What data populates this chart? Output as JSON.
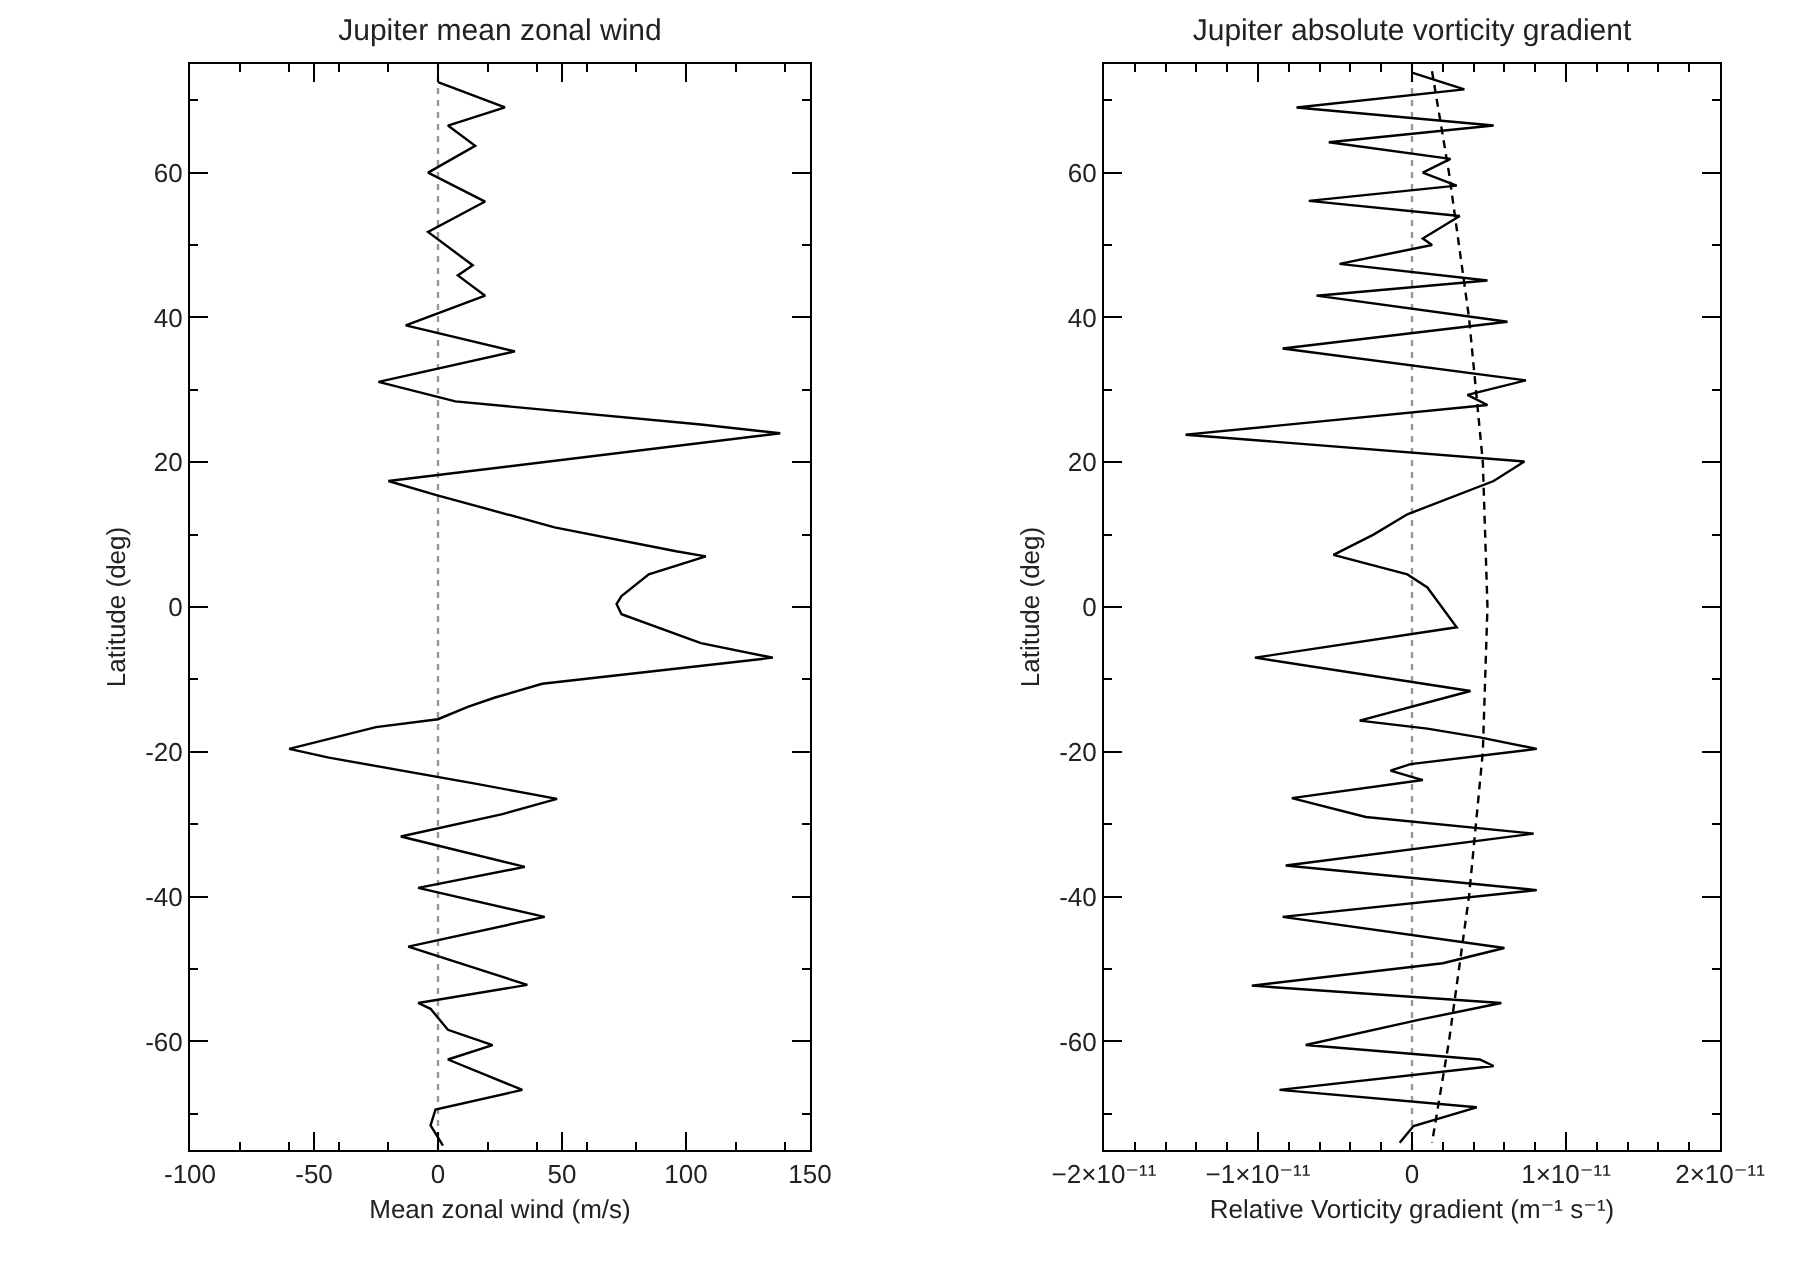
{
  "chart_data": [
    {
      "type": "line",
      "title": "Jupiter mean zonal wind",
      "xlabel": "Mean zonal wind (m/s)",
      "ylabel": "Latitude (deg)",
      "xlim": [
        -100,
        150
      ],
      "xticks": [
        -100,
        -50,
        0,
        50,
        100,
        150
      ],
      "ylim": [
        -75,
        75
      ],
      "yticks": [
        -60,
        -40,
        -20,
        0,
        20,
        40,
        60
      ],
      "ref_lines": [
        {
          "axis": "x",
          "value": 0,
          "color": "#999999",
          "line_style": "dotted"
        }
      ],
      "series": [
        {
          "color": "#000000",
          "line_style": "solid",
          "x": [
            0,
            27,
            4,
            15,
            -4,
            19,
            -4,
            14,
            8,
            19,
            -13,
            31,
            -24,
            7,
            106,
            138,
            -20,
            -1,
            47,
            96,
            108,
            85,
            74,
            72,
            74,
            106,
            135,
            42,
            23,
            12,
            0,
            -25,
            -60,
            -44,
            15,
            48,
            26,
            -15,
            35,
            -8,
            43,
            -12,
            36,
            -8,
            -3,
            4,
            22,
            4,
            34,
            -1,
            -3,
            2
          ],
          "values": [
            72.5,
            69,
            66.5,
            63.7,
            60,
            56,
            51.8,
            47.2,
            45.8,
            43,
            38.9,
            35.3,
            31.1,
            28.4,
            25.2,
            24,
            17.4,
            15.5,
            11,
            7.7,
            7,
            4.5,
            1.5,
            0.4,
            -1,
            -5,
            -7,
            -10.6,
            -12.5,
            -13.8,
            -15.5,
            -16.6,
            -19.6,
            -20.8,
            -24.4,
            -26.5,
            -28.6,
            -31.7,
            -35.9,
            -38.8,
            -42.8,
            -46.9,
            -52.2,
            -54.7,
            -55.5,
            -58.4,
            -60.5,
            -62.5,
            -66.7,
            -69.4,
            -71.6,
            -74.4
          ]
        }
      ]
    },
    {
      "type": "line",
      "title": "Jupiter absolute vorticity gradient",
      "xlabel": "Relative Vorticity gradient (m⁻¹ s⁻¹)",
      "ylabel": "Latitude (deg)",
      "xlim": [
        -2e-11,
        2e-11
      ],
      "xticks": [
        {
          "value": -2e-11,
          "label": "−2×10⁻¹¹"
        },
        {
          "value": -1e-11,
          "label": "−1×10⁻¹¹"
        },
        0,
        {
          "value": 1e-11,
          "label": "1×10⁻¹¹"
        },
        {
          "value": 2e-11,
          "label": "2×10⁻¹¹"
        }
      ],
      "ylim": [
        -75,
        75
      ],
      "yticks": [
        -60,
        -40,
        -20,
        0,
        20,
        40,
        60
      ],
      "ref_lines": [
        {
          "axis": "x",
          "value": 0,
          "color": "#999999",
          "line_style": "dotted"
        }
      ],
      "series": [
        {
          "color": "#000000",
          "line_style": "solid",
          "x": [
            0,
            3.4e-12,
            -7.5e-12,
            5.3e-12,
            -5.4e-12,
            2.5e-12,
            7e-13,
            2.9e-12,
            -6.7e-12,
            3.1e-12,
            7e-13,
            1.3e-12,
            -4.7e-12,
            4.9e-12,
            -6.2e-12,
            6.2e-12,
            -8.4e-12,
            7.4e-12,
            3.6e-12,
            4.9e-12,
            -1.47e-11,
            7.3e-12,
            5.3e-12,
            -3e-13,
            -2.5e-12,
            -5.1e-12,
            -3e-13,
            1e-12,
            2.9e-12,
            -1.02e-11,
            3.8e-12,
            -3.4e-12,
            1e-12,
            4.4e-12,
            8.1e-12,
            -1e-13,
            -1.4e-12,
            7e-13,
            -7.8e-12,
            -3e-12,
            7.9e-12,
            -8.2e-12,
            8.1e-12,
            -8.4e-12,
            6e-12,
            2e-12,
            -1.04e-11,
            5.8e-12,
            5e-13,
            -6.9e-12,
            4.4e-12,
            5.3e-12,
            -8.6e-12,
            4.2e-12,
            1e-13,
            -8e-13
          ],
          "values": [
            73.8,
            71.5,
            69,
            66.5,
            64.2,
            61.9,
            60,
            58.2,
            56.1,
            54,
            50.9,
            50,
            47.4,
            45.1,
            43,
            39.4,
            35.7,
            31.3,
            29.3,
            27.9,
            23.8,
            20.1,
            17.4,
            12.8,
            10,
            7.2,
            4.5,
            2.7,
            -2.8,
            -7,
            -11.6,
            -15.7,
            -16.8,
            -18,
            -19.6,
            -21.7,
            -22.6,
            -23.9,
            -26.4,
            -29,
            -31.3,
            -35.7,
            -39.1,
            -42.8,
            -47.1,
            -49.2,
            -52.3,
            -54.7,
            -57,
            -60.5,
            -62.5,
            -63.4,
            -66.7,
            -69.1,
            -71.7,
            -74
          ]
        },
        {
          "color": "#000000",
          "line_style": "dashed",
          "x": [
            1.3e-12,
            2.4e-12,
            3.7e-12,
            4.6e-12,
            4.9e-12,
            4.6e-12,
            3.7e-12,
            2.4e-12,
            1.3e-12
          ],
          "values": [
            74,
            60,
            40,
            20,
            0,
            -20,
            -40,
            -60,
            -74
          ]
        }
      ]
    }
  ]
}
